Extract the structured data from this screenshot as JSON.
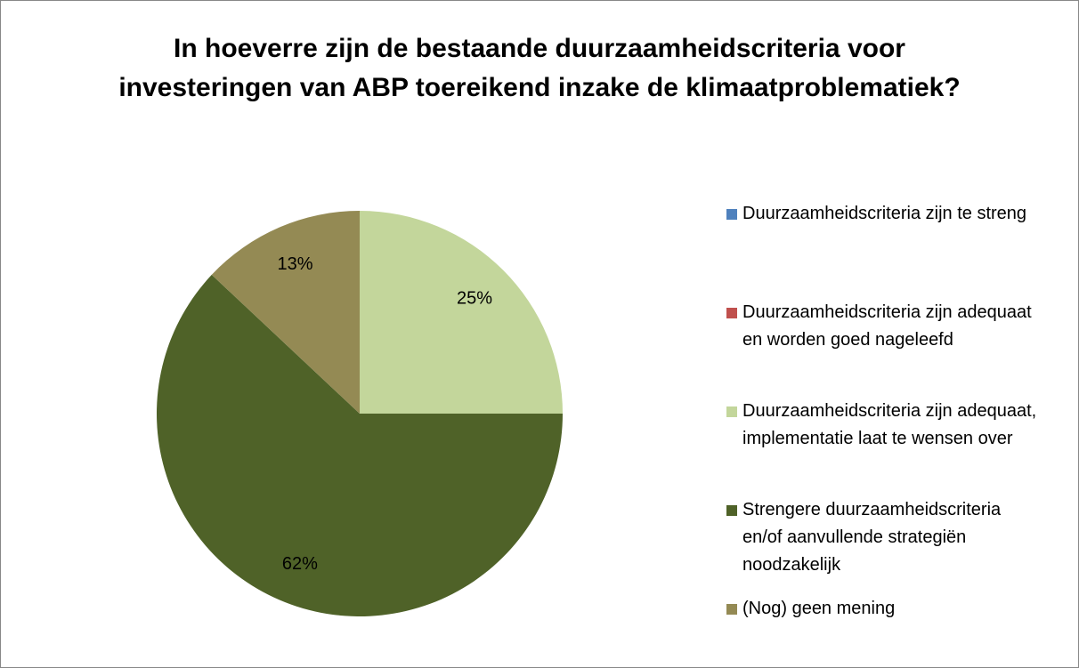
{
  "chart_data": {
    "type": "pie",
    "title": "In hoeverre zijn de bestaande duurzaamheidscriteria voor investeringen van ABP toereikend inzake de klimaatproblematiek?",
    "categories": [
      "Duurzaamheidscriteria zijn te streng",
      "Duurzaamheidscriteria zijn adequaat en worden goed nageleefd",
      "Duurzaamheidscriteria zijn adequaat, implementatie laat te wensen over",
      "Strengere duurzaamheidscriteria en/of aanvullende strategiën noodzakelijk",
      "(Nog) geen mening"
    ],
    "values": [
      0,
      0,
      25,
      62,
      13
    ],
    "value_labels": [
      null,
      null,
      "25%",
      "62%",
      "13%"
    ],
    "colors": [
      "#4f81bd",
      "#c0504d",
      "#c3d69b",
      "#4f6228",
      "#948a54"
    ],
    "legend": "right"
  }
}
